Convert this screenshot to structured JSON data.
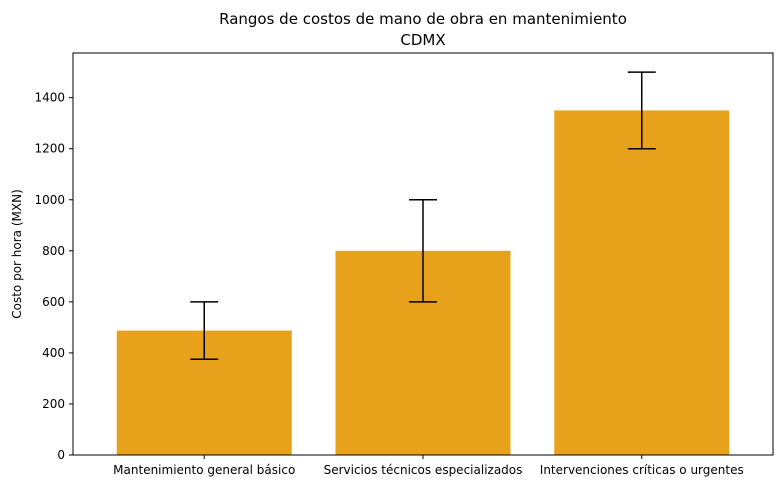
{
  "chart_data": {
    "type": "bar",
    "title": "Rangos de costos de mano de obra en mantenimiento",
    "subtitle": "CDMX",
    "xlabel": "",
    "ylabel": "Costo por hora (MXN)",
    "categories": [
      "Mantenimiento general básico",
      "Servicios técnicos especializados",
      "Intervenciones críticas o urgentes"
    ],
    "values": [
      487.5,
      800,
      1350
    ],
    "error_low": [
      375,
      600,
      1200
    ],
    "error_high": [
      600,
      1000,
      1500
    ],
    "ylim": [
      0,
      1575
    ],
    "yticks": [
      0,
      200,
      400,
      600,
      800,
      1000,
      1200,
      1400
    ],
    "bar_color": "#E8A11B",
    "errorbar_color": "#000000",
    "grid": false,
    "legend": "none"
  }
}
